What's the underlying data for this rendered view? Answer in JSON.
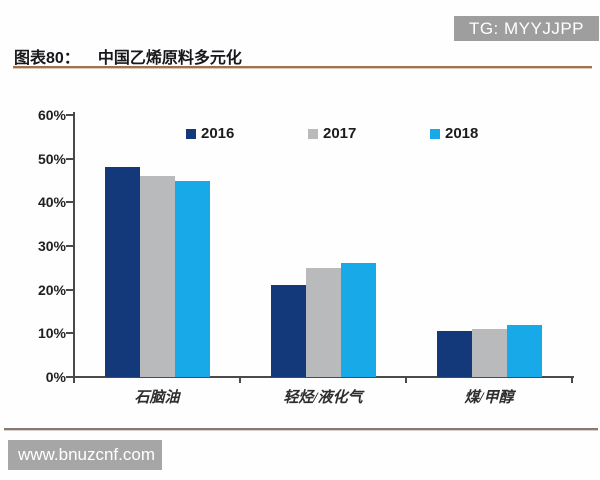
{
  "badge": {
    "text": "TG: MYYJJPP"
  },
  "header": {
    "label": "图表80：",
    "title": "中国乙烯原料多元化"
  },
  "watermark": {
    "text": "www.bnuzcnf.com"
  },
  "chart_data": {
    "type": "bar",
    "title": "中国乙烯原料多元化",
    "categories": [
      "石脑油",
      "轻烃/液化气",
      "煤/甲醇"
    ],
    "series": [
      {
        "name": "2016",
        "color": "#14397b",
        "values": [
          48,
          21,
          10.5
        ]
      },
      {
        "name": "2017",
        "color": "#b8babc",
        "values": [
          46,
          25,
          11
        ]
      },
      {
        "name": "2018",
        "color": "#18aae8",
        "values": [
          45,
          26,
          12
        ]
      }
    ],
    "xlabel": "",
    "ylabel": "",
    "ylim": [
      0,
      60
    ],
    "ytick_step": 10,
    "ytick_format": "percent",
    "legend_position": "top",
    "grid": false,
    "axis_color": "#4a4a4a"
  }
}
